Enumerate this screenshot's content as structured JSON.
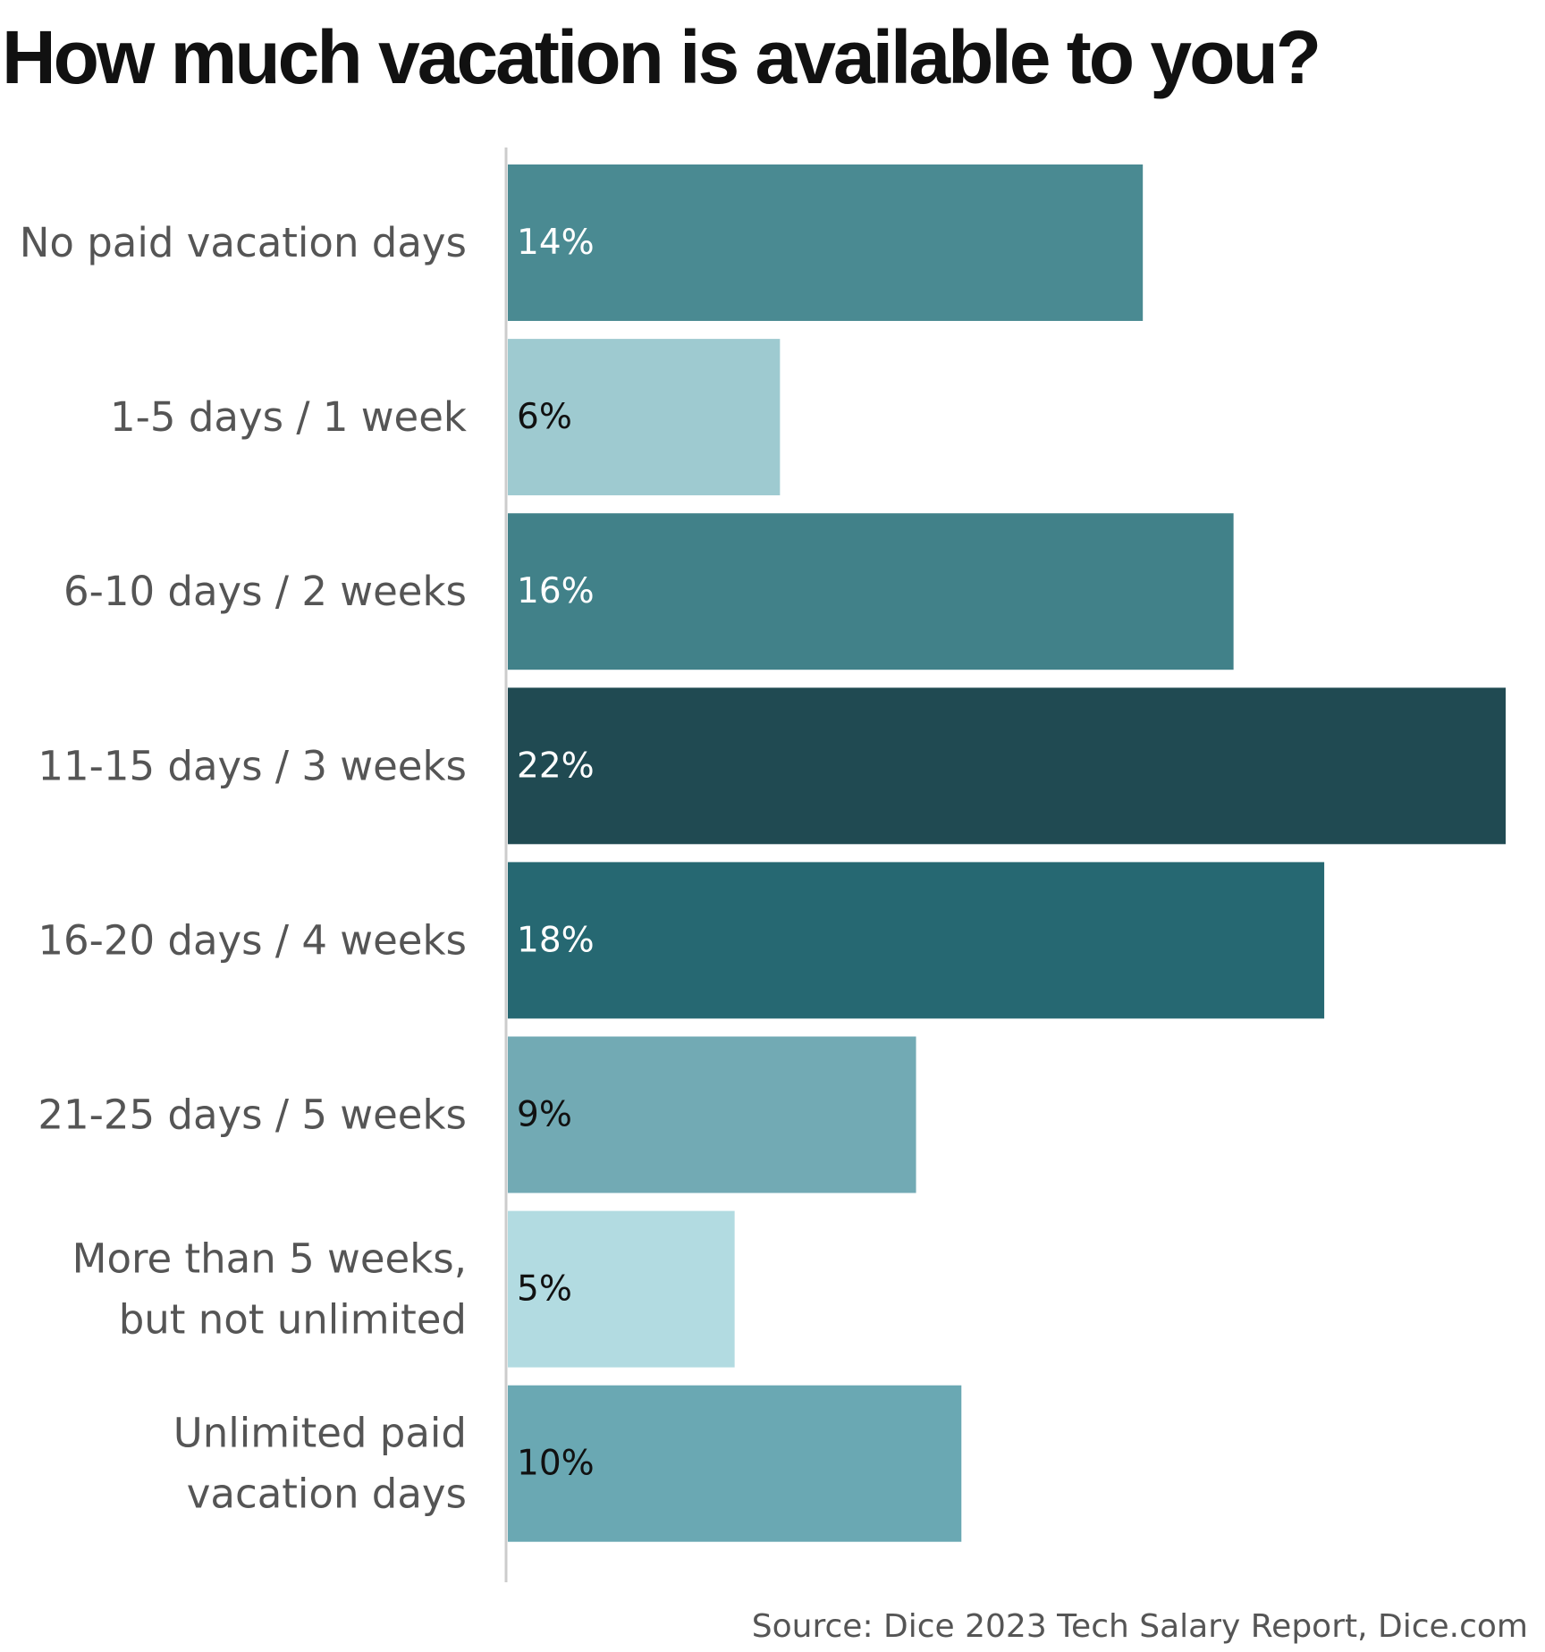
{
  "chart_data": {
    "type": "bar",
    "orientation": "horizontal",
    "title": "How much vacation is available to you?",
    "categories": [
      "No paid vacation days",
      "1-5 days / 1 week",
      "6-10 days / 2 weeks",
      "11-15 days / 3 weeks",
      "16-20 days / 4 weeks",
      "21-25 days / 5 weeks",
      "More than 5 weeks,\nbut not unlimited",
      "Unlimited paid\nvacation days"
    ],
    "values": [
      14,
      6,
      16,
      22,
      18,
      9,
      5,
      10
    ],
    "value_labels": [
      "14%",
      "6%",
      "16%",
      "22%",
      "18%",
      "9%",
      "5%",
      "10%"
    ],
    "unit": "%",
    "xlim": [
      0,
      22
    ],
    "grid": false,
    "legend": "none",
    "bar_colors": [
      "#4a8a92",
      "#9ecad0",
      "#418189",
      "#204a52",
      "#266872",
      "#72aab4",
      "#b2dbe1",
      "#6aa8b3"
    ],
    "label_colors": [
      "#ffffff",
      "#111111",
      "#ffffff",
      "#ffffff",
      "#ffffff",
      "#111111",
      "#111111",
      "#111111"
    ],
    "axis_color": "#cccccc",
    "source": "Source: Dice 2023 Tech Salary Report, Dice.com"
  }
}
